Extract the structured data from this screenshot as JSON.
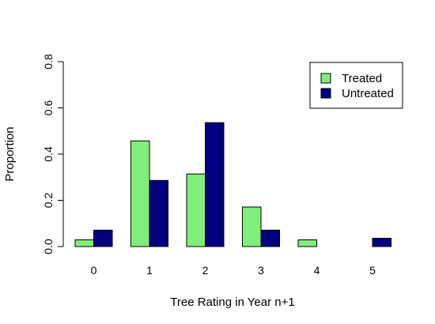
{
  "chart_data": {
    "type": "bar",
    "categories": [
      "0",
      "1",
      "2",
      "3",
      "4",
      "5"
    ],
    "series": [
      {
        "name": "Treated",
        "values": [
          0.029,
          0.457,
          0.314,
          0.171,
          0.029,
          0.0
        ],
        "color": "#80ee7a"
      },
      {
        "name": "Untreated",
        "values": [
          0.071,
          0.286,
          0.536,
          0.071,
          0.0,
          0.036
        ],
        "color": "#000080"
      }
    ],
    "xlabel": "Tree Rating in Year n+1",
    "ylabel": "Proportion",
    "ylim": [
      0,
      0.8
    ],
    "yticks": [
      "0.0",
      "0.2",
      "0.4",
      "0.6",
      "0.8"
    ],
    "grid": false,
    "legend_position": "top-right"
  }
}
